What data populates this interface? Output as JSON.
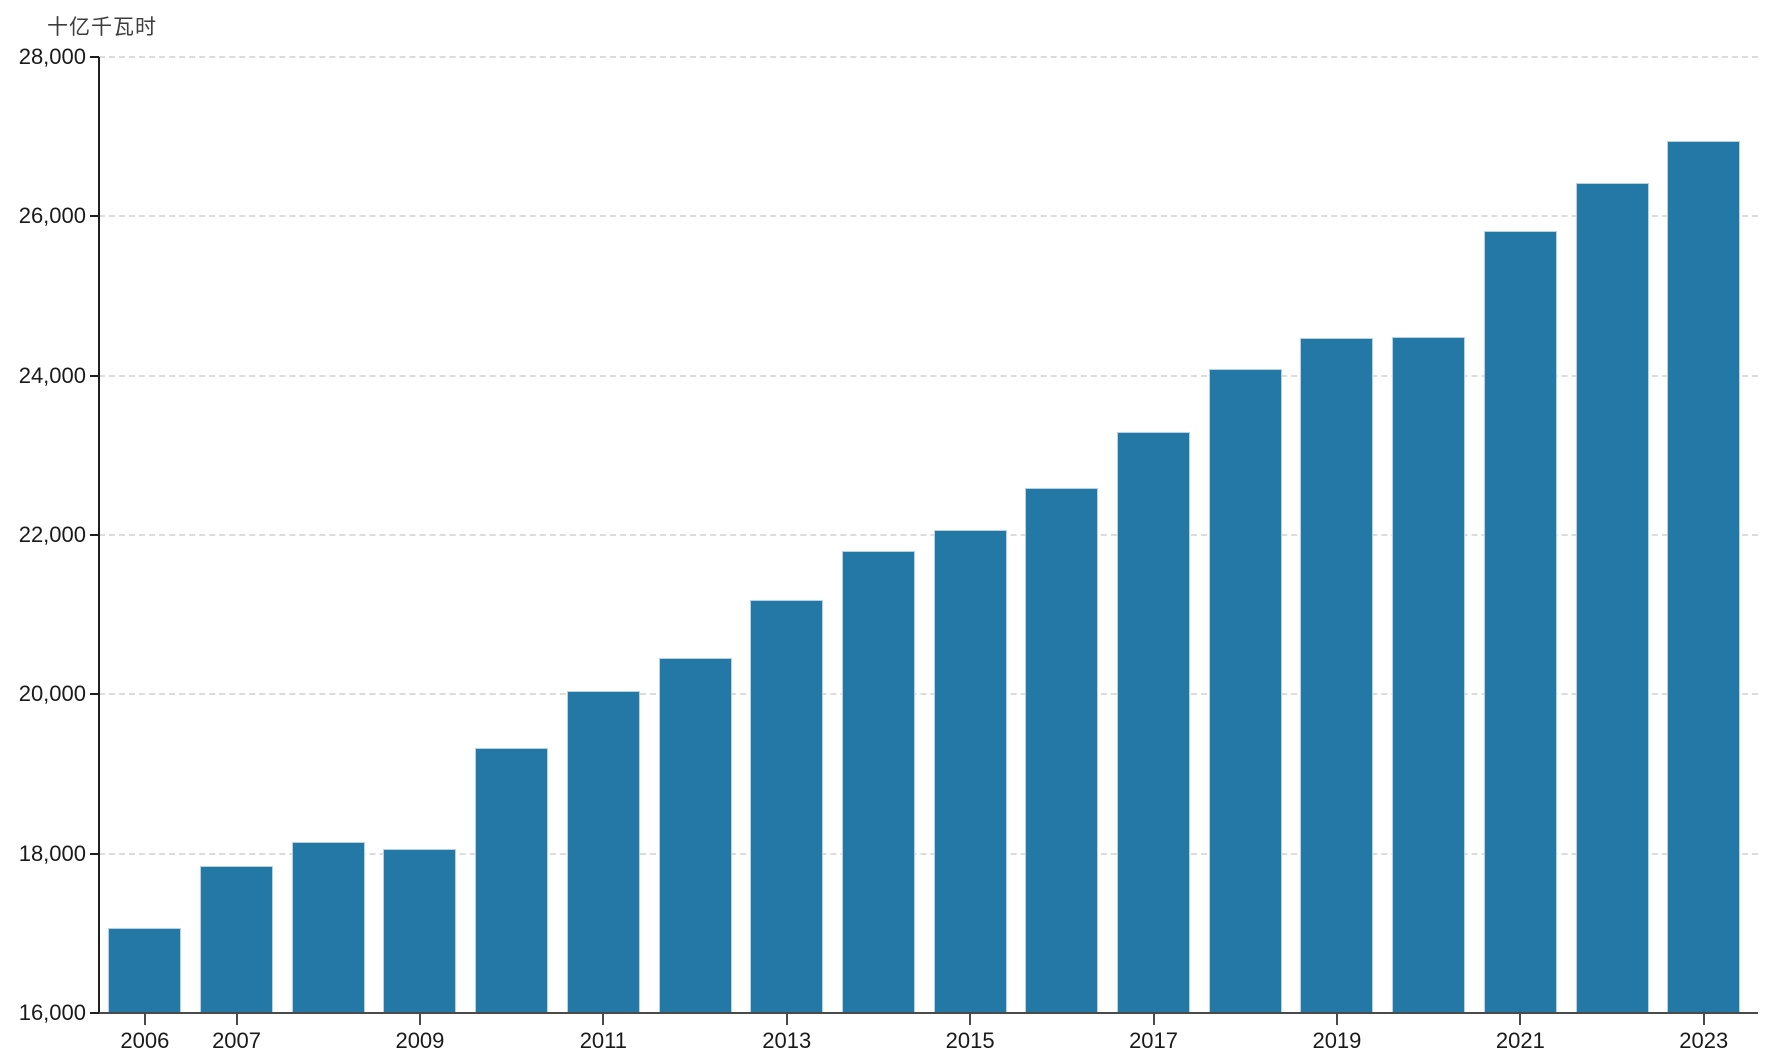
{
  "chart_data": {
    "type": "bar",
    "title": "",
    "unit_label": "十亿千瓦时",
    "xlabel": "",
    "ylabel": "十亿千瓦时",
    "categories": [
      "2006",
      "2007",
      "2008",
      "2009",
      "2010",
      "2011",
      "2012",
      "2013",
      "2014",
      "2015",
      "2016",
      "2017",
      "2018",
      "2019",
      "2020",
      "2021",
      "2022",
      "2023"
    ],
    "values": [
      17070,
      17850,
      18150,
      18060,
      19330,
      20040,
      20460,
      21190,
      21800,
      22060,
      22590,
      23290,
      24080,
      24470,
      24490,
      25810,
      26420,
      26940
    ],
    "x_tick_labels": [
      "2006",
      "2007",
      "2009",
      "2011",
      "2013",
      "2015",
      "2017",
      "2019",
      "2021",
      "2023"
    ],
    "y_ticks": [
      16000,
      18000,
      20000,
      22000,
      24000,
      26000,
      28000
    ],
    "y_tick_labels": [
      "16,000",
      "18,000",
      "20,000",
      "22,000",
      "24,000",
      "26,000",
      "28,000"
    ],
    "ylim": [
      16000,
      28000
    ],
    "grid": "horizontal-dashed",
    "legend": "none",
    "colors": {
      "bar_fill": "#2478a5",
      "bar_border": "#b7d3e3",
      "gridline": "#dcdcdc",
      "y_axis": "#1f1f1f",
      "x_axis": "#4a4a4a",
      "tick_text": "#1a1a1a",
      "unit_text": "#3d3d3d",
      "background": "#ffffff"
    }
  }
}
